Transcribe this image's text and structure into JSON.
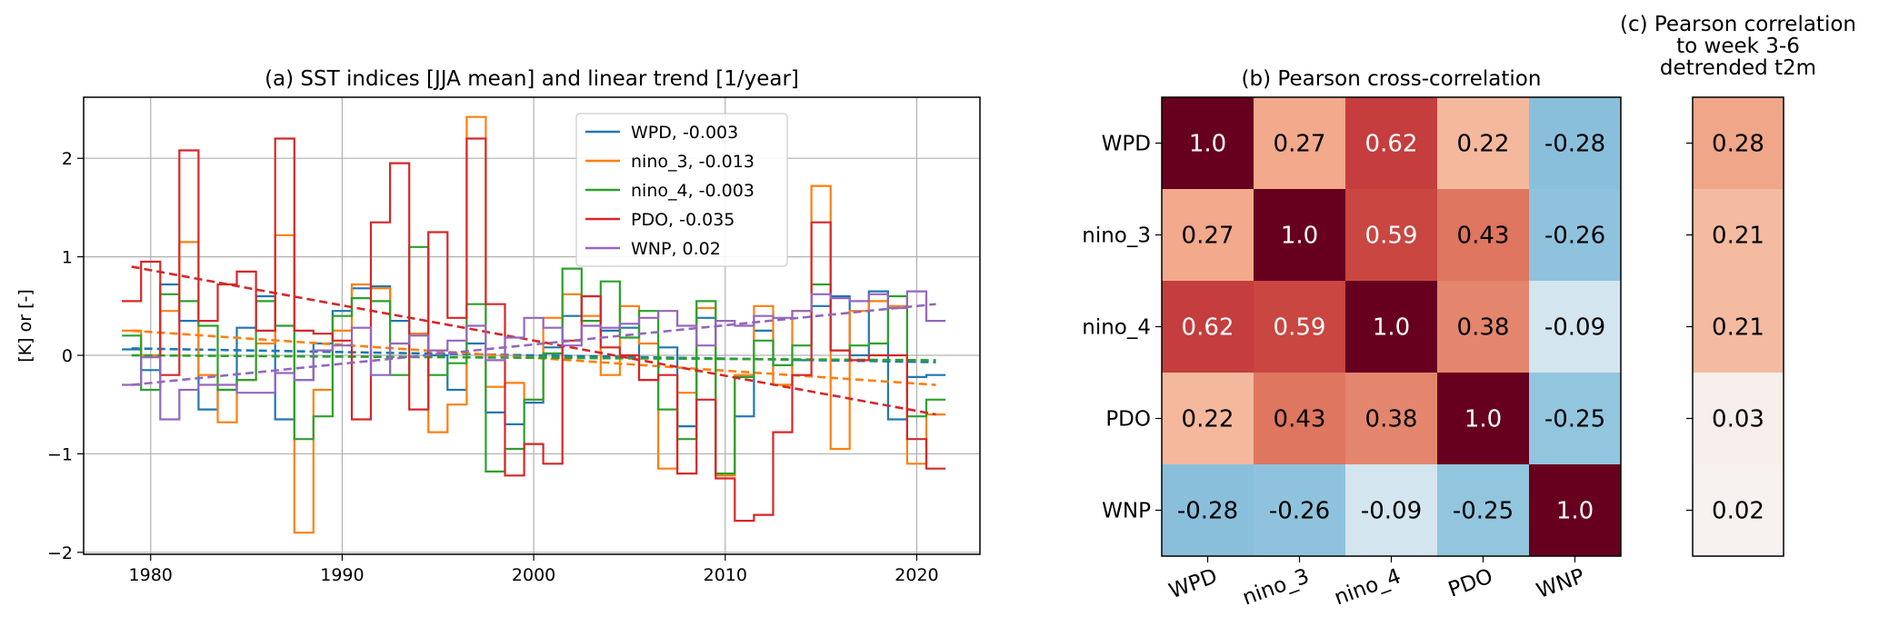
{
  "chart_data": [
    {
      "type": "line",
      "title": "(a) SST indices [JJA mean] and linear trend [1/year]",
      "xlabel": "",
      "ylabel": "[K] or [-]",
      "xlim": [
        1976.5,
        2023.3
      ],
      "ylim": [
        -2.02,
        2.62
      ],
      "x_ticks": [
        "1980",
        "1990",
        "2000",
        "2010",
        "2020"
      ],
      "y_ticks": [
        "−2",
        "−1",
        "0",
        "1",
        "2"
      ],
      "grid": true,
      "legend_position": "upper center",
      "x": [
        1979,
        1980,
        1981,
        1982,
        1983,
        1984,
        1985,
        1986,
        1987,
        1988,
        1989,
        1990,
        1991,
        1992,
        1993,
        1994,
        1995,
        1996,
        1997,
        1998,
        1999,
        2000,
        2001,
        2002,
        2003,
        2004,
        2005,
        2006,
        2007,
        2008,
        2009,
        2010,
        2011,
        2012,
        2013,
        2014,
        2015,
        2016,
        2017,
        2018,
        2019,
        2020,
        2021
      ],
      "series": [
        {
          "name": "WPD",
          "legend": "WPD, -0.003",
          "color": "#1f77b4",
          "values": [
            0.06,
            -0.15,
            0.72,
            0.35,
            -0.55,
            -0.35,
            0.28,
            0.6,
            -0.65,
            -0.25,
            0.12,
            0.45,
            0.68,
            0.7,
            0.35,
            0.22,
            0.0,
            -0.35,
            0.12,
            -0.58,
            -0.7,
            -0.48,
            0.08,
            0.4,
            0.6,
            0.25,
            0.28,
            -0.25,
            0.08,
            -0.72,
            0.38,
            -1.22,
            -0.62,
            0.25,
            -0.3,
            -0.05,
            0.5,
            0.6,
            0.0,
            0.65,
            -0.65,
            -0.22,
            -0.2
          ],
          "trend": [
            0.07,
            -0.07
          ]
        },
        {
          "name": "nino_3",
          "legend": "nino_3, -0.013",
          "color": "#ff7f0e",
          "values": [
            0.25,
            0.0,
            0.45,
            1.15,
            -0.2,
            -0.68,
            -0.25,
            0.12,
            1.22,
            -1.8,
            -0.35,
            0.25,
            0.72,
            0.68,
            0.12,
            0.22,
            -0.78,
            -0.5,
            2.42,
            -0.32,
            -0.28,
            -0.45,
            0.38,
            0.62,
            0.4,
            -0.2,
            0.5,
            0.12,
            -1.15,
            -0.38,
            0.48,
            -1.22,
            -0.2,
            0.5,
            -0.3,
            0.45,
            1.72,
            -0.95,
            0.45,
            0.55,
            0.5,
            -1.1,
            -0.6
          ],
          "trend": [
            0.25,
            -0.3
          ]
        },
        {
          "name": "nino_4",
          "legend": "nino_4, -0.003",
          "color": "#2ca02c",
          "values": [
            0.2,
            -0.35,
            0.62,
            0.55,
            0.3,
            -0.35,
            -0.25,
            0.55,
            0.3,
            -0.85,
            -0.62,
            0.4,
            0.58,
            0.55,
            -0.2,
            1.1,
            -0.2,
            -0.08,
            0.52,
            -1.18,
            -0.95,
            -0.45,
            0.02,
            0.88,
            0.35,
            0.75,
            0.18,
            0.45,
            -0.55,
            -0.85,
            0.55,
            -1.2,
            -0.22,
            0.15,
            -0.1,
            0.1,
            0.72,
            0.05,
            0.1,
            0.12,
            0.6,
            -0.62,
            -0.45
          ],
          "trend": [
            0.0,
            -0.05
          ]
        },
        {
          "name": "PDO",
          "legend": "PDO, -0.035",
          "color": "#d62728",
          "values": [
            0.55,
            0.95,
            -0.2,
            2.08,
            0.35,
            0.72,
            0.85,
            0.25,
            2.2,
            0.25,
            0.22,
            0.15,
            -0.65,
            1.35,
            1.95,
            -0.55,
            1.25,
            0.38,
            2.2,
            0.52,
            -1.22,
            -0.9,
            -1.1,
            0.15,
            0.6,
            0.08,
            0.0,
            -0.25,
            -0.2,
            -1.2,
            -0.45,
            -1.25,
            -1.68,
            -1.62,
            -0.78,
            -0.2,
            1.35,
            0.05,
            -0.05,
            0.0,
            0.0,
            -0.85,
            -1.15
          ],
          "trend": [
            0.9,
            -0.6
          ]
        },
        {
          "name": "WNP",
          "legend": "WNP, 0.02",
          "color": "#9467bd",
          "values": [
            -0.3,
            -0.02,
            -0.65,
            -0.35,
            -0.3,
            -0.3,
            -0.38,
            -0.38,
            -0.18,
            -0.25,
            0.05,
            0.1,
            0.28,
            -0.2,
            0.12,
            0.2,
            0.05,
            0.15,
            0.3,
            -0.05,
            0.18,
            0.38,
            0.28,
            0.1,
            0.3,
            0.28,
            0.32,
            0.38,
            0.45,
            0.3,
            0.1,
            0.35,
            0.3,
            0.4,
            0.38,
            0.45,
            0.62,
            0.58,
            0.55,
            0.62,
            0.48,
            0.65,
            0.35
          ],
          "trend": [
            -0.3,
            0.52
          ]
        }
      ]
    },
    {
      "type": "heatmap",
      "title": "(b) Pearson cross-correlation",
      "rows": [
        "WPD",
        "nino_3",
        "nino_4",
        "PDO",
        "WNP"
      ],
      "cols": [
        "WPD",
        "nino_3",
        "nino_4",
        "PDO",
        "WNP"
      ],
      "values": [
        [
          1.0,
          0.27,
          0.62,
          0.22,
          -0.28
        ],
        [
          0.27,
          1.0,
          0.59,
          0.43,
          -0.26
        ],
        [
          0.62,
          0.59,
          1.0,
          0.38,
          -0.09
        ],
        [
          0.22,
          0.43,
          0.38,
          1.0,
          -0.25
        ],
        [
          -0.28,
          -0.26,
          -0.09,
          -0.25,
          1.0
        ]
      ],
      "labels": [
        [
          "1.0",
          "0.27",
          "0.62",
          "0.22",
          "-0.28"
        ],
        [
          "0.27",
          "1.0",
          "0.59",
          "0.43",
          "-0.26"
        ],
        [
          "0.62",
          "0.59",
          "1.0",
          "0.38",
          "-0.09"
        ],
        [
          "0.22",
          "0.43",
          "0.38",
          "1.0",
          "-0.25"
        ],
        [
          "-0.28",
          "-0.26",
          "-0.09",
          "-0.25",
          "1.0"
        ]
      ],
      "colormap": "RdBu_r",
      "vlim": [
        -1,
        1
      ]
    },
    {
      "type": "heatmap",
      "title": [
        "(c) Pearson correlation",
        "to week 3-6",
        "detrended t2m"
      ],
      "rows": [
        "WPD",
        "nino_3",
        "nino_4",
        "PDO",
        "WNP"
      ],
      "values": [
        0.28,
        0.21,
        0.21,
        0.03,
        0.02
      ],
      "labels": [
        "0.28",
        "0.21",
        "0.21",
        "0.03",
        "0.02"
      ],
      "colormap": "RdBu_r",
      "vlim": [
        -1,
        1
      ]
    }
  ]
}
